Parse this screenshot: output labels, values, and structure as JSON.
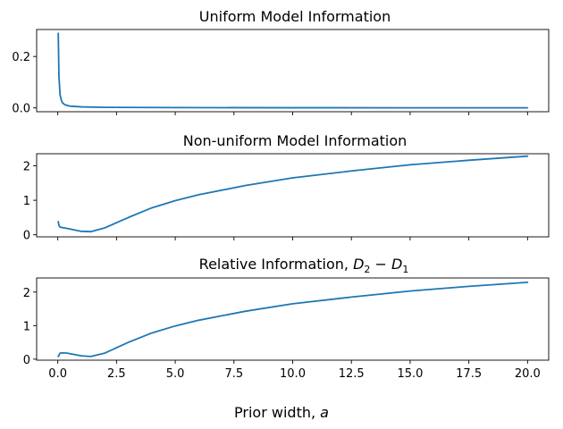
{
  "xlabel_text": "Prior width, ",
  "xlabel_var": "a",
  "chart_data": [
    {
      "type": "line",
      "title": "Uniform Model Information",
      "xlim": [
        -0.9,
        20.9
      ],
      "ylim": [
        -0.015,
        0.305
      ],
      "xticks": [
        0,
        2.5,
        5,
        7.5,
        10,
        12.5,
        15,
        17.5,
        20
      ],
      "yticks": [
        0.0,
        0.2
      ],
      "ytick_labels": [
        "0.0",
        "0.2"
      ],
      "show_xtick_labels": false,
      "grid": false,
      "series": [
        {
          "x": [
            0.02,
            0.05,
            0.1,
            0.15,
            0.2,
            0.3,
            0.5,
            1.0,
            2.0,
            5.0,
            10.0,
            15.0,
            20.0
          ],
          "y": [
            0.29,
            0.12,
            0.05,
            0.03,
            0.02,
            0.012,
            0.007,
            0.004,
            0.002,
            0.001,
            0.0005,
            0.0003,
            0.0002
          ]
        }
      ]
    },
    {
      "type": "line",
      "title": "Non-uniform Model Information",
      "xlim": [
        -0.9,
        20.9
      ],
      "ylim": [
        -0.06,
        2.35
      ],
      "xticks": [
        0,
        2.5,
        5,
        7.5,
        10,
        12.5,
        15,
        17.5,
        20
      ],
      "yticks": [
        0,
        1,
        2
      ],
      "ytick_labels": [
        "0",
        "1",
        "2"
      ],
      "show_xtick_labels": false,
      "grid": false,
      "series": [
        {
          "x": [
            0.02,
            0.05,
            0.1,
            0.2,
            0.5,
            1.0,
            1.4,
            2.0,
            3.0,
            4.0,
            5.0,
            6.0,
            8.0,
            10.0,
            12.5,
            15.0,
            17.5,
            20.0
          ],
          "y": [
            0.38,
            0.27,
            0.22,
            0.21,
            0.17,
            0.1,
            0.09,
            0.2,
            0.5,
            0.78,
            0.99,
            1.16,
            1.43,
            1.65,
            1.85,
            2.03,
            2.16,
            2.28
          ]
        }
      ]
    },
    {
      "type": "line",
      "title": "Relative Information, D2 − D1",
      "xlim": [
        -0.9,
        20.9
      ],
      "ylim": [
        -0.03,
        2.42
      ],
      "xticks": [
        0,
        2.5,
        5,
        7.5,
        10,
        12.5,
        15,
        17.5,
        20
      ],
      "xtick_labels": [
        "0.0",
        "2.5",
        "5.0",
        "7.5",
        "10.0",
        "12.5",
        "15.0",
        "17.5",
        "20.0"
      ],
      "yticks": [
        0,
        1,
        2
      ],
      "ytick_labels": [
        "0",
        "1",
        "2"
      ],
      "show_xtick_labels": true,
      "grid": false,
      "series": [
        {
          "x": [
            0.02,
            0.1,
            0.2,
            0.4,
            0.7,
            1.0,
            1.4,
            2.0,
            3.0,
            4.0,
            5.0,
            6.0,
            8.0,
            10.0,
            12.5,
            15.0,
            17.5,
            20.0
          ],
          "y": [
            0.08,
            0.18,
            0.19,
            0.18,
            0.14,
            0.1,
            0.08,
            0.18,
            0.5,
            0.78,
            0.99,
            1.16,
            1.43,
            1.65,
            1.85,
            2.03,
            2.17,
            2.29
          ]
        }
      ]
    }
  ]
}
